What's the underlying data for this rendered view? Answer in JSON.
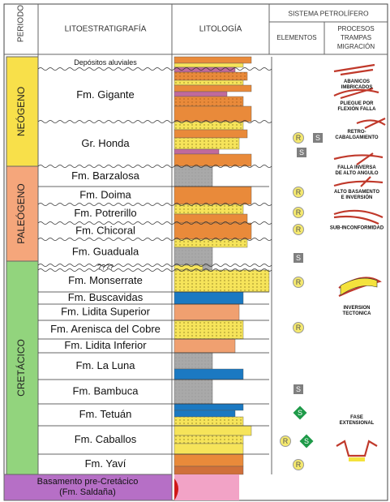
{
  "header": {
    "periodo": "PERIODO",
    "litoestratigrafia": "LITOESTRATIGRAFÍA",
    "litologia": "LITOLOGÍA",
    "sistema": "SISTEMA PETROLÍFERO",
    "elementos": "ELEMENTOS",
    "procesos": [
      "PROCESOS",
      "TRAMPAS",
      "MIGRACIÓN"
    ]
  },
  "periods": [
    {
      "name": "NEÓGENO",
      "color": "#f8e04a"
    },
    {
      "name": "PALEÓGENO",
      "color": "#f5a67b"
    },
    {
      "name": "CRETÁCICO",
      "color": "#92d47d"
    }
  ],
  "formations": [
    "Depósitos aluviales",
    "Fm. Gigante",
    "Gr. Honda",
    "Fm. Barzalosa",
    "Fm. Doima",
    "Fm. Potrerillo",
    "Fm. Chicoral",
    "Fm. Guaduala",
    "????",
    "Fm. Monserrate",
    "Fm. Buscavidas",
    "Fm. Lidita Superior",
    "Fm. Arenisca del Cobre",
    "Fm. Lidita Inferior",
    "Fm. La Luna",
    "Fm. Bambuca",
    "Fm. Tetuán",
    "Fm. Caballos",
    "Fm. Yaví"
  ],
  "basement": {
    "lines": [
      "Basamento pre-Cretácico",
      "(Fm. Saldaña)"
    ],
    "color": "#b66fc6"
  },
  "elements": [
    {
      "label": "R",
      "color": "#f5e96e"
    },
    {
      "label": "S",
      "color": "#7f7f7f"
    },
    {
      "label": "S",
      "color": "#7f7f7f"
    },
    {
      "label": "R",
      "color": "#f5e96e"
    },
    {
      "label": "R",
      "color": "#f5e96e"
    },
    {
      "label": "R",
      "color": "#f5e96e"
    },
    {
      "label": "S",
      "color": "#7f7f7f"
    },
    {
      "label": "R",
      "color": "#f5e96e"
    },
    {
      "label": "R",
      "color": "#f5e96e"
    },
    {
      "label": "S",
      "color": "#7f7f7f"
    },
    {
      "label": "S",
      "color": "#1e9a48"
    },
    {
      "label": "R",
      "color": "#f5e96e"
    },
    {
      "label": "S",
      "color": "#1e9a48"
    },
    {
      "label": "R",
      "color": "#f5e96e"
    }
  ],
  "processes": [
    [
      "ABANICOS",
      "IMBRICADOS"
    ],
    [
      "PLIEGUE POR",
      "FLEXIÓN FALLA"
    ],
    [
      "RETRO-",
      "CABALGAMIENTO"
    ],
    [
      "FALLA INVERSA",
      "DE ALTO ANGULO"
    ],
    [
      "ALTO BASAMENTO",
      "E INVERSIÓN"
    ],
    [
      "SUB-INCONFORMIDAD"
    ],
    [
      "INVERSION",
      "TECTONICA"
    ],
    [
      "FASE",
      "EXTENSIONAL"
    ]
  ]
}
